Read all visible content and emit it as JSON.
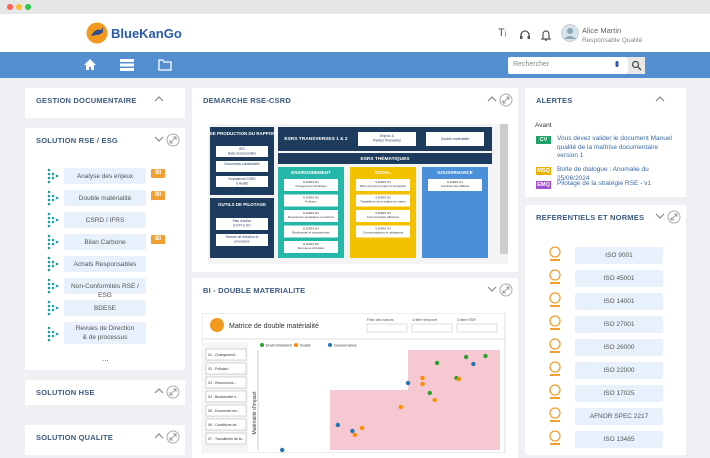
{
  "header": {
    "logo": "BlueKanGo",
    "user_name": "Alice Martin",
    "user_role": "Responsable Qualité",
    "search_placeholder": "Rechercher"
  },
  "left": {
    "panels": [
      "GESTION DOCUMENTAIRE",
      "SOLUTION RSE / ESG",
      "SOLUTION HSE",
      "SOLUTION QUALITE"
    ],
    "rse_items": [
      {
        "label": "Analyse des enjeux",
        "badge": "BI"
      },
      {
        "label": "Double matérialité",
        "badge": "BI"
      },
      {
        "label": "CSRD / IFRS",
        "badge": null
      },
      {
        "label": "Bilan Carbone",
        "badge": "BI"
      },
      {
        "label": "Achats Responsables",
        "badge": null
      },
      {
        "label": "Non-Conformités RSE / ESG",
        "badge": null
      },
      {
        "label": "BDESE",
        "badge": null
      },
      {
        "label": "Revues de Direction\n& de processus",
        "badge": null
      }
    ],
    "more": "..."
  },
  "csrd": {
    "title": "DEMARCHE RSE-CSRD",
    "production": "OUTILS DE PRODUCTION DU RAPPORT CSRD",
    "production_items": [
      "IRO\nBase documentaire",
      "Documents collaboratifs",
      "Evaluations CSRD\n& Audits"
    ],
    "pilotage": "OUTILS DE PILOTAGE",
    "pilotage_items": [
      "Plan d'action\n& KPI & DO",
      "Revues de direction et\nprocessus"
    ],
    "transverses": "ESRS TRANSVERSES 1 & 2",
    "transverses_items": [
      "Enjeux &\nParties Prenantes",
      "Double matérialité"
    ],
    "thematiques": "ESRS THÉMATIQUES",
    "columns": [
      {
        "name": "ENVIRONNEMENT",
        "items": [
          "E ESRS E1\nChangement climatique",
          "E ESRS E2\nPollution",
          "E ESRS E3\nRessources aquatiques et marines",
          "E ESRS E4\nBiodiversité et écosystèmes",
          "E ESRS E5\nEconomie circulaire"
        ]
      },
      {
        "name": "SOCIAL",
        "items": [
          "S ESRS S1\nMain d'oeuvre propre à l'entreprise",
          "S ESRS S2\nTravailleurs de la chaîne de valeur",
          "S ESRS S3\nCommunautés affectées",
          "S ESRS S4\nConsommateurs et utilisateurs"
        ]
      },
      {
        "name": "GOUVERNANCE",
        "items": [
          "G ESRS G1\nConduite des affaires"
        ]
      }
    ]
  },
  "bi": {
    "title": "BI - DOUBLE MATERIALITE",
    "chart_title": "Matrice de double matérialité",
    "filters": [
      "Filtre des valeurs",
      "Critère temporel",
      "Critère ESR"
    ],
    "topics": [
      "01 - Changement...",
      "02 - Pollution",
      "03 - Ressources...",
      "04 - Biodiversité e...",
      "05 - Economie circ...",
      "06 - Conditions de...",
      "07 - Travailleurs de la..."
    ],
    "y_label": "Matérialité d'impact",
    "xlim": [
      0,
      10
    ],
    "ylim": [
      0,
      10
    ],
    "series": [
      {
        "name": "Environnement",
        "color": "#2ca02c",
        "x": [
          7.4,
          8.6,
          9.4,
          7.1,
          8.2
        ],
        "y": [
          8.7,
          9.3,
          9.4,
          5.7,
          7.2
        ]
      },
      {
        "name": "Social",
        "color": "#ff8c00",
        "x": [
          6.8,
          6.8,
          5.9,
          4.3,
          4.0,
          7.3,
          8.3
        ],
        "y": [
          6.6,
          7.2,
          4.3,
          2.2,
          1.5,
          5.0,
          7.1
        ]
      },
      {
        "name": "Gouvernance",
        "color": "#1f77b4",
        "x": [
          6.2,
          3.3,
          3.9,
          8.9,
          1.0
        ],
        "y": [
          6.7,
          2.5,
          1.9,
          8.6,
          0.0
        ]
      }
    ]
  },
  "alerts": {
    "title": "ALERTES",
    "section": "Avant",
    "items": [
      {
        "tag": "CV",
        "color": "#1fa36b",
        "text": "Vous devez valider le document Manuel qualité de la maîtrise documentaire version 1"
      },
      {
        "tag": "MSQ",
        "color": "#e8b400",
        "text": "Boîte de dialogue : Anomalie du 25/06/2024"
      },
      {
        "tag": "EMQ",
        "color": "#a64fd0",
        "text": "Pilotage de la stratégie RSE - v1"
      }
    ]
  },
  "norms": {
    "title": "REFERENTIELS ET NORMES",
    "items": [
      "ISO 9001",
      "ISO 45001",
      "ISO 14001",
      "ISO 27001",
      "ISO 26000",
      "ISO 22000",
      "ISO 17025",
      "AFNOR SPEC 2217",
      "ISO 13485"
    ]
  }
}
